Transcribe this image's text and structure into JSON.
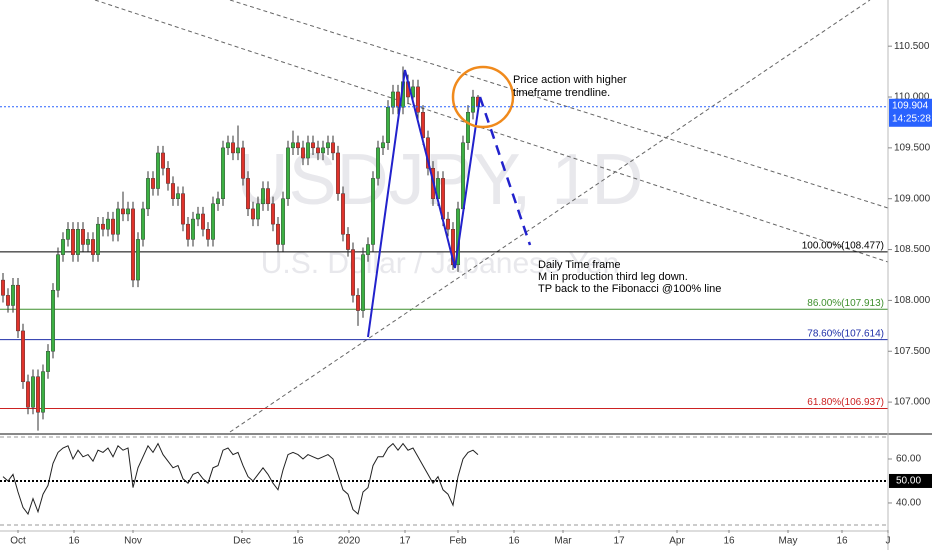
{
  "chart_data": {
    "type": "candlestick",
    "watermark": "USDJPY, 1D",
    "watermark_subtitle": "U.S. Dollar / Japanese Yen",
    "up_color": "#3cb043",
    "down_color": "#e0332b",
    "candles": [
      [
        108.2,
        108.27,
        107.98,
        108.05
      ],
      [
        108.05,
        108.12,
        107.88,
        107.95
      ],
      [
        107.95,
        108.22,
        107.88,
        108.15
      ],
      [
        108.15,
        108.22,
        107.63,
        107.7
      ],
      [
        107.7,
        107.77,
        107.13,
        107.2
      ],
      [
        107.2,
        107.27,
        106.88,
        106.95
      ],
      [
        106.95,
        107.32,
        106.88,
        107.25
      ],
      [
        107.25,
        107.32,
        106.72,
        106.9
      ],
      [
        106.9,
        107.37,
        106.83,
        107.3
      ],
      [
        107.3,
        107.57,
        107.23,
        107.5
      ],
      [
        107.5,
        108.17,
        107.43,
        108.1
      ],
      [
        108.1,
        108.52,
        108.03,
        108.45
      ],
      [
        108.45,
        108.67,
        108.38,
        108.6
      ],
      [
        108.6,
        108.77,
        108.53,
        108.7
      ],
      [
        108.7,
        108.77,
        108.38,
        108.45
      ],
      [
        108.45,
        108.77,
        108.38,
        108.7
      ],
      [
        108.7,
        108.77,
        108.48,
        108.55
      ],
      [
        108.55,
        108.67,
        108.48,
        108.6
      ],
      [
        108.6,
        108.67,
        108.38,
        108.45
      ],
      [
        108.45,
        108.82,
        108.38,
        108.75
      ],
      [
        108.75,
        108.82,
        108.63,
        108.7
      ],
      [
        108.7,
        108.87,
        108.63,
        108.8
      ],
      [
        108.8,
        108.87,
        108.58,
        108.65
      ],
      [
        108.65,
        108.97,
        108.58,
        108.9
      ],
      [
        108.9,
        109.07,
        108.78,
        108.85
      ],
      [
        108.85,
        108.97,
        108.78,
        108.9
      ],
      [
        108.9,
        108.97,
        108.13,
        108.2
      ],
      [
        108.2,
        108.67,
        108.13,
        108.6
      ],
      [
        108.6,
        108.97,
        108.53,
        108.9
      ],
      [
        108.9,
        109.27,
        108.83,
        109.2
      ],
      [
        109.2,
        109.27,
        109.03,
        109.1
      ],
      [
        109.1,
        109.52,
        109.03,
        109.45
      ],
      [
        109.45,
        109.52,
        109.23,
        109.3
      ],
      [
        109.3,
        109.37,
        109.08,
        109.15
      ],
      [
        109.15,
        109.22,
        108.93,
        109.0
      ],
      [
        109.0,
        109.12,
        108.93,
        109.05
      ],
      [
        109.05,
        109.12,
        108.68,
        108.75
      ],
      [
        108.75,
        108.82,
        108.53,
        108.6
      ],
      [
        108.6,
        108.87,
        108.53,
        108.8
      ],
      [
        108.8,
        108.92,
        108.73,
        108.85
      ],
      [
        108.85,
        108.92,
        108.63,
        108.7
      ],
      [
        108.7,
        108.77,
        108.53,
        108.6
      ],
      [
        108.6,
        109.02,
        108.53,
        108.95
      ],
      [
        108.95,
        109.07,
        108.88,
        109.0
      ],
      [
        109.0,
        109.57,
        108.93,
        109.5
      ],
      [
        109.5,
        109.62,
        109.43,
        109.55
      ],
      [
        109.55,
        109.62,
        109.38,
        109.45
      ],
      [
        109.45,
        109.72,
        109.38,
        109.5
      ],
      [
        109.5,
        109.57,
        109.13,
        109.2
      ],
      [
        109.2,
        109.27,
        108.83,
        108.9
      ],
      [
        108.9,
        108.97,
        108.73,
        108.8
      ],
      [
        108.8,
        109.02,
        108.73,
        108.95
      ],
      [
        108.95,
        109.17,
        108.88,
        109.1
      ],
      [
        109.1,
        109.17,
        108.88,
        108.95
      ],
      [
        108.95,
        109.02,
        108.68,
        108.75
      ],
      [
        108.75,
        108.82,
        108.48,
        108.55
      ],
      [
        108.55,
        109.07,
        108.48,
        109.0
      ],
      [
        109.0,
        109.57,
        108.93,
        109.5
      ],
      [
        109.5,
        109.67,
        109.43,
        109.55
      ],
      [
        109.55,
        109.62,
        109.43,
        109.5
      ],
      [
        109.5,
        109.57,
        109.33,
        109.4
      ],
      [
        109.4,
        109.62,
        109.33,
        109.55
      ],
      [
        109.55,
        109.62,
        109.43,
        109.5
      ],
      [
        109.5,
        109.57,
        109.38,
        109.45
      ],
      [
        109.45,
        109.57,
        109.38,
        109.5
      ],
      [
        109.5,
        109.62,
        109.43,
        109.55
      ],
      [
        109.55,
        109.62,
        109.38,
        109.45
      ],
      [
        109.45,
        109.52,
        108.98,
        109.05
      ],
      [
        109.05,
        109.12,
        108.58,
        108.65
      ],
      [
        108.65,
        108.72,
        108.43,
        108.5
      ],
      [
        108.5,
        108.57,
        107.98,
        108.05
      ],
      [
        108.05,
        108.12,
        107.75,
        107.9
      ],
      [
        107.9,
        108.52,
        107.83,
        108.45
      ],
      [
        108.45,
        108.62,
        108.38,
        108.55
      ],
      [
        108.55,
        109.27,
        108.48,
        109.2
      ],
      [
        109.2,
        109.57,
        109.13,
        109.5
      ],
      [
        109.5,
        109.62,
        109.43,
        109.55
      ],
      [
        109.55,
        109.97,
        109.48,
        109.9
      ],
      [
        109.9,
        110.12,
        109.83,
        110.05
      ],
      [
        110.05,
        110.12,
        109.83,
        109.9
      ],
      [
        109.9,
        110.3,
        109.83,
        110.15
      ],
      [
        110.15,
        110.22,
        109.93,
        110.0
      ],
      [
        110.0,
        110.17,
        109.93,
        110.1
      ],
      [
        110.1,
        110.17,
        109.78,
        109.85
      ],
      [
        109.85,
        109.92,
        109.53,
        109.6
      ],
      [
        109.6,
        109.67,
        109.23,
        109.3
      ],
      [
        109.3,
        109.37,
        108.93,
        109.0
      ],
      [
        109.0,
        109.27,
        108.93,
        109.2
      ],
      [
        109.2,
        109.27,
        108.73,
        108.8
      ],
      [
        108.8,
        108.87,
        108.63,
        108.7
      ],
      [
        108.7,
        108.77,
        108.3,
        108.35
      ],
      [
        108.35,
        108.97,
        108.28,
        108.9
      ],
      [
        108.9,
        109.62,
        108.83,
        109.55
      ],
      [
        109.55,
        109.92,
        109.48,
        109.85
      ],
      [
        109.85,
        110.07,
        109.78,
        110.0
      ],
      [
        110.0,
        110.02,
        109.85,
        109.904
      ]
    ],
    "countdown": "14:25:28",
    "ylim": [
      106.706,
      110.954
    ],
    "yticks": [
      {
        "value": 110.5,
        "label": "110.500"
      },
      {
        "value": 110,
        "label": "110.000"
      },
      {
        "value": 109.5,
        "label": "109.500"
      },
      {
        "value": 109,
        "label": "109.000"
      },
      {
        "value": 108.5,
        "label": "108.500"
      },
      {
        "value": 108,
        "label": "108.000"
      },
      {
        "value": 107.5,
        "label": "107.500"
      },
      {
        "value": 107,
        "label": "107.000"
      }
    ],
    "xlim": [
      -0.6,
      177
    ],
    "xticks": [
      {
        "value": 3,
        "label": "Oct"
      },
      {
        "value": 14.2,
        "label": "16"
      },
      {
        "value": 26,
        "label": "Nov"
      },
      {
        "value": 47.8,
        "label": "Dec"
      },
      {
        "value": 59,
        "label": "16"
      },
      {
        "value": 69.2,
        "label": "2020"
      },
      {
        "value": 80.4,
        "label": "17"
      },
      {
        "value": 91,
        "label": "Feb"
      },
      {
        "value": 102.2,
        "label": "16"
      },
      {
        "value": 112,
        "label": "Mar"
      },
      {
        "value": 123.2,
        "label": "17"
      },
      {
        "value": 134.8,
        "label": "Apr"
      },
      {
        "value": 145.2,
        "label": "16"
      },
      {
        "value": 157,
        "label": "May"
      },
      {
        "value": 167.8,
        "label": "16"
      },
      {
        "value": 177,
        "label": "J"
      }
    ],
    "fib_levels": [
      {
        "value": 108.477,
        "label": "100.00%(108.477)",
        "color": "#000000"
      },
      {
        "value": 107.913,
        "label": "86.00%(107.913)",
        "color": "#3f8f2f"
      },
      {
        "value": 107.614,
        "label": "78.60%(107.614)",
        "color": "#1f2fa8"
      },
      {
        "value": 106.937,
        "label": "61.80%(106.937)",
        "color": "#cc2222"
      }
    ],
    "annotations": [
      {
        "lines": [
          "Price action with higher",
          "timeframe trendline."
        ]
      },
      {
        "lines": [
          "Daily Time frame",
          "M in production third leg down.",
          "TP back to the Fibonacci @100% line"
        ]
      }
    ],
    "indicator": {
      "type": "line",
      "color": "#222222",
      "values": [
        52,
        50,
        53,
        45,
        38,
        35,
        42,
        36,
        44,
        48,
        58,
        63,
        65,
        66,
        60,
        64,
        61,
        62,
        59,
        64,
        63,
        65,
        61,
        66,
        64,
        65,
        47,
        56,
        61,
        66,
        63,
        67,
        62,
        59,
        56,
        57,
        51,
        49,
        53,
        54,
        51,
        49,
        56,
        57,
        64,
        65,
        62,
        63,
        57,
        52,
        50,
        53,
        56,
        53,
        49,
        46,
        55,
        62,
        63,
        62,
        60,
        62,
        61,
        60,
        61,
        62,
        60,
        53,
        46,
        44,
        37,
        35,
        45,
        47,
        57,
        61,
        61,
        65,
        67,
        64,
        67,
        64,
        65,
        61,
        57,
        53,
        49,
        52,
        46,
        44,
        39,
        52,
        60,
        63,
        64,
        62
      ],
      "ylim": [
        27.7,
        70
      ],
      "yticks": [
        {
          "value": 60,
          "label": "60.00"
        },
        {
          "value": 40,
          "label": "40.00"
        }
      ],
      "bands": [
        70,
        30
      ],
      "midline": {
        "value": 50,
        "label": "50.00"
      }
    }
  }
}
